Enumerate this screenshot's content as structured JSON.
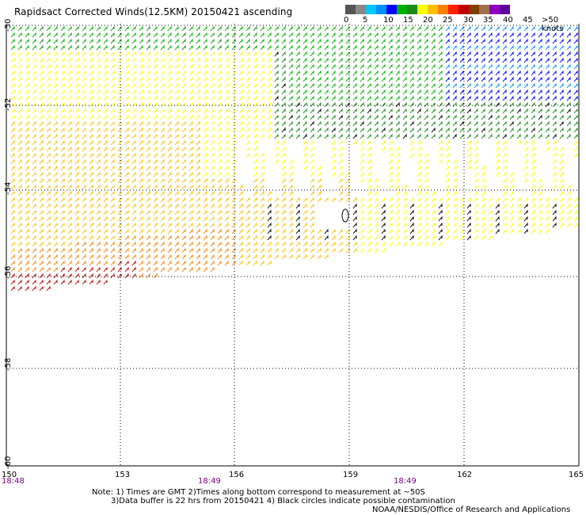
{
  "title": "Rapidsact Corrected Winds(12.5KM) 20150421 ascending",
  "legend": {
    "colors": [
      "#555555",
      "#888888",
      "#00c8ff",
      "#0090ff",
      "#0000ff",
      "#00b000",
      "#1a8a1a",
      "#ffff00",
      "#ffc000",
      "#ff8000",
      "#ff2000",
      "#c00000",
      "#804000",
      "#a07050",
      "#9000c0",
      "#6000a0"
    ],
    "labels": [
      "0",
      "5",
      "10",
      "15",
      "20",
      "25",
      "30",
      "35",
      "40",
      "45",
      ">50 knots"
    ]
  },
  "lat_labels": [
    "-50",
    "-52",
    "-54",
    "-56",
    "-58",
    "-60"
  ],
  "lon_labels": [
    "150",
    "153",
    "156",
    "159",
    "162",
    "165"
  ],
  "time_labels": [
    "18:48",
    "18:49",
    "18:49"
  ],
  "notes": {
    "line1": "Note: 1) Times are GMT 2)Times along bottom correspond to measurement at ~50S",
    "line2": "3)Data buffer is 22 hrs from 20150421 4) Black circles indicate possible contamination",
    "credit": "NOAA/NESDIS/Office of Research and Applications"
  }
}
